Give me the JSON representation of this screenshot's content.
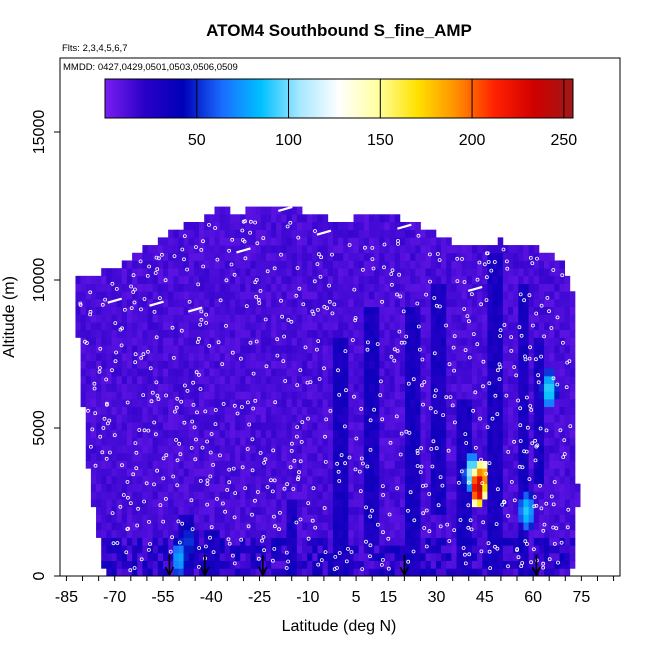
{
  "chart_data": {
    "type": "heatmap",
    "title": "ATOM4 Southbound S_fine_AMP",
    "flights_label": "Flts: 2,3,4,5,6,7",
    "dates_label": "MMDD: 0427,0429,0501,0503,0506,0509",
    "xlabel": "Latitude (deg N)",
    "ylabel": "Altitude (m)",
    "xlim": [
      -87,
      87
    ],
    "ylim": [
      0,
      17500
    ],
    "x_ticks": [
      -85,
      -70,
      -55,
      -40,
      -25,
      -10,
      5,
      15,
      30,
      45,
      60,
      75
    ],
    "y_ticks": [
      0,
      5000,
      10000,
      15000
    ],
    "colorbar": {
      "min": 0,
      "max": 255,
      "ticks": [
        50,
        100,
        150,
        200,
        250
      ],
      "colors": [
        "#7a1ff2",
        "#2a00c8",
        "#0000b8",
        "#1a6cff",
        "#00c0ff",
        "#a8e8ff",
        "#ffffff",
        "#ffffa0",
        "#ffe200",
        "#ff9000",
        "#ff2000",
        "#d00000",
        "#a01818"
      ]
    },
    "coverage_profile": [
      {
        "lat": -81,
        "top": 9900
      },
      {
        "lat": -77,
        "top": 10000
      },
      {
        "lat": -73,
        "top": 10200
      },
      {
        "lat": -68,
        "top": 10400
      },
      {
        "lat": -62,
        "top": 10900
      },
      {
        "lat": -57,
        "top": 11100
      },
      {
        "lat": -52,
        "top": 11600
      },
      {
        "lat": -45,
        "top": 11800
      },
      {
        "lat": -38,
        "top": 12300
      },
      {
        "lat": -32,
        "top": 12150
      },
      {
        "lat": -22,
        "top": 12400
      },
      {
        "lat": -12,
        "top": 12250
      },
      {
        "lat": -3,
        "top": 11900
      },
      {
        "lat": 8,
        "top": 12000
      },
      {
        "lat": 18,
        "top": 12000
      },
      {
        "lat": 25,
        "top": 11700
      },
      {
        "lat": 34,
        "top": 11200
      },
      {
        "lat": 42,
        "top": 11000
      },
      {
        "lat": 50,
        "top": 11200
      },
      {
        "lat": 60,
        "top": 11000
      },
      {
        "lat": 66,
        "top": 10800
      },
      {
        "lat": 70,
        "top": 10300
      },
      {
        "lat": 73,
        "top": 9200
      }
    ],
    "coverage_left_edge": [
      {
        "alt": 0,
        "lat": -73
      },
      {
        "alt": 2000,
        "lat": -76
      },
      {
        "alt": 4300,
        "lat": -79
      },
      {
        "alt": 6000,
        "lat": -80
      },
      {
        "alt": 9000,
        "lat": -82
      },
      {
        "alt": 9900,
        "lat": -82
      }
    ],
    "coverage_right_edge": [
      {
        "alt": 0,
        "lat": 72
      },
      {
        "alt": 2500,
        "lat": 74
      },
      {
        "alt": 5000,
        "lat": 73
      },
      {
        "alt": 9200,
        "lat": 73
      }
    ],
    "hotspots": [
      {
        "lat": 43,
        "alt": 3000,
        "value": 250
      },
      {
        "lat": 44,
        "alt": 3300,
        "value": 210
      },
      {
        "lat": 41,
        "alt": 3500,
        "value": 110
      },
      {
        "lat": 58,
        "alt": 2200,
        "value": 90
      },
      {
        "lat": 65,
        "alt": 6300,
        "value": 95
      },
      {
        "lat": -50,
        "alt": 600,
        "value": 80
      },
      {
        "lat": -47,
        "alt": 1200,
        "value": 55
      }
    ],
    "low_value_columns": [
      {
        "lat": -48,
        "alt_from": 0,
        "alt_to": 2000
      },
      {
        "lat": -40,
        "alt_from": 0,
        "alt_to": 1500
      },
      {
        "lat": -15,
        "alt_from": 0,
        "alt_to": 2500
      },
      {
        "lat": 0,
        "alt_from": 0,
        "alt_to": 8000
      },
      {
        "lat": 10,
        "alt_from": 1000,
        "alt_to": 9000
      },
      {
        "lat": 22,
        "alt_from": 0,
        "alt_to": 9000
      },
      {
        "lat": 30,
        "alt_from": 2000,
        "alt_to": 10000
      },
      {
        "lat": 38,
        "alt_from": 0,
        "alt_to": 6000
      },
      {
        "lat": 48,
        "alt_from": 0,
        "alt_to": 11000
      },
      {
        "lat": 57,
        "alt_from": 0,
        "alt_to": 10000
      },
      {
        "lat": 62,
        "alt_from": 3000,
        "alt_to": 8000
      }
    ],
    "arrows_lat": [
      -53,
      -42,
      -24,
      20,
      61
    ]
  }
}
